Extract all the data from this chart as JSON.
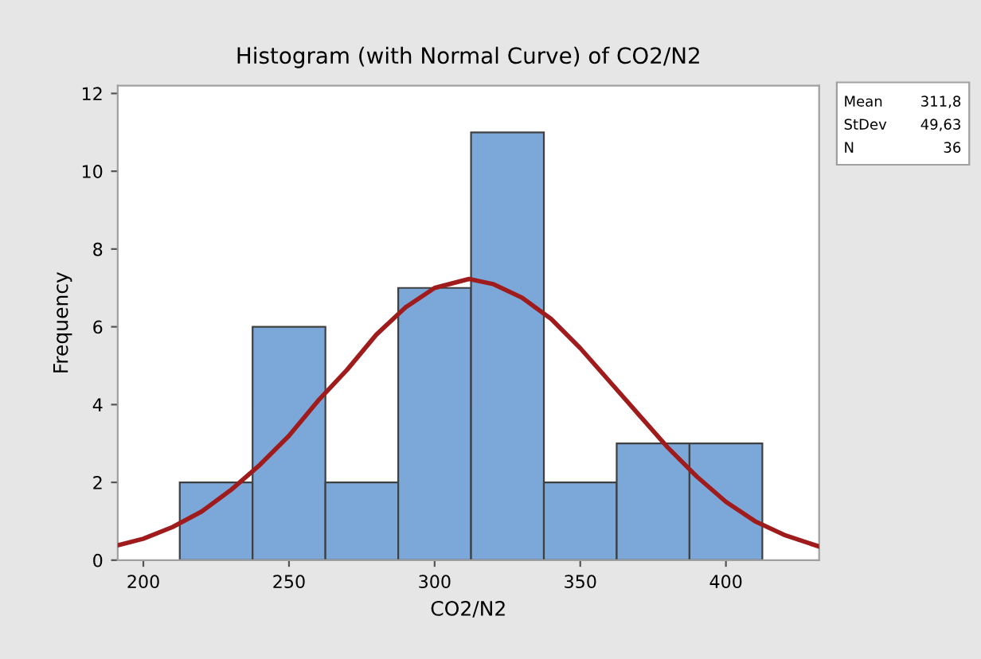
{
  "chart_data": {
    "type": "histogram",
    "title": "Histogram (with Normal Curve) of CO2/N2",
    "xlabel": "CO2/N2",
    "ylabel": "Frequency",
    "bins": [
      212.5,
      237.5,
      262.5,
      287.5,
      312.5,
      337.5,
      362.5,
      387.5,
      412.5
    ],
    "values": [
      2,
      6,
      2,
      7,
      11,
      2,
      3,
      3
    ],
    "color": "#7ba7d9",
    "series": [
      {
        "type": "line",
        "color": "#a01c1c",
        "x": [
          191.2,
          200,
          210,
          220,
          230,
          240,
          250,
          260,
          270,
          280,
          290,
          300,
          311.8,
          320,
          330,
          340,
          350,
          360,
          370,
          380,
          390,
          400,
          410,
          420,
          432
        ],
        "values": [
          0.38,
          0.55,
          0.85,
          1.25,
          1.8,
          2.45,
          3.2,
          4.1,
          4.9,
          5.8,
          6.5,
          7.0,
          7.23,
          7.1,
          6.75,
          6.2,
          5.45,
          4.6,
          3.75,
          2.9,
          2.15,
          1.5,
          1.0,
          0.65,
          0.35
        ]
      }
    ],
    "xlim": [
      191.2,
      432
    ],
    "xticks": [
      200,
      250,
      300,
      350,
      400
    ],
    "ylim": [
      0,
      12.2
    ],
    "yticks": [
      0,
      2,
      4,
      6,
      8,
      10,
      12
    ],
    "grid": false,
    "legend": false,
    "annotations": [
      "Mean 311,8",
      "StDev 49,63",
      "N 36"
    ]
  }
}
